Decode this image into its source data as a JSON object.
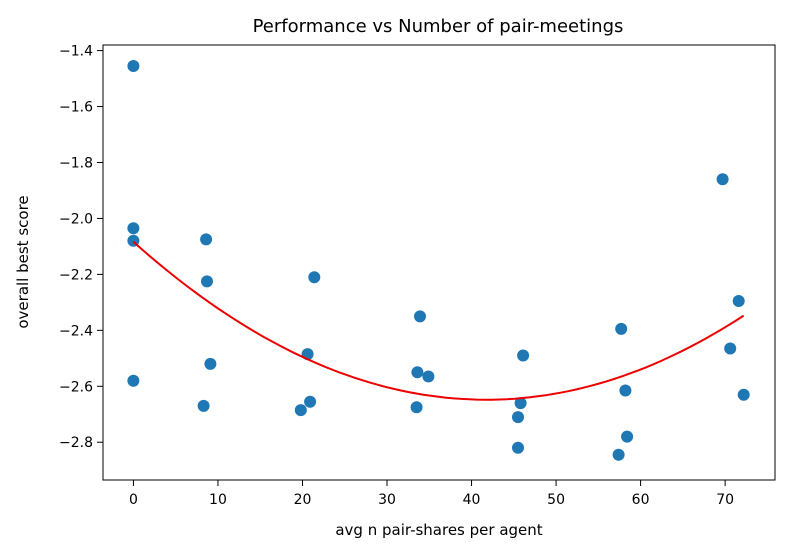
{
  "chart_data": {
    "type": "scatter",
    "title": "Performance vs Number of pair-meetings",
    "xlabel": "avg n pair-shares per agent",
    "ylabel": "overall best score",
    "xlim": [
      -3.6,
      75.9
    ],
    "ylim": [
      -2.935,
      -1.38
    ],
    "xticks": [
      0,
      10,
      20,
      30,
      40,
      50,
      60,
      70
    ],
    "xtick_labels": [
      "0",
      "10",
      "20",
      "30",
      "40",
      "50",
      "60",
      "70"
    ],
    "yticks": [
      -2.8,
      -2.6,
      -2.4,
      -2.2,
      -2.0,
      -1.8,
      -1.6,
      -1.4
    ],
    "ytick_labels": [
      "−2.8",
      "−2.6",
      "−2.4",
      "−2.2",
      "−2.0",
      "−1.8",
      "−1.6",
      "−1.4"
    ],
    "grid": false,
    "marker_color": "#1f77b4",
    "fit_color": "#ee0000",
    "points": [
      {
        "x": 0.0,
        "y": -1.455
      },
      {
        "x": 0.0,
        "y": -2.035
      },
      {
        "x": 0.0,
        "y": -2.08
      },
      {
        "x": 0.0,
        "y": -2.58
      },
      {
        "x": 8.3,
        "y": -2.67
      },
      {
        "x": 8.6,
        "y": -2.075
      },
      {
        "x": 8.7,
        "y": -2.225
      },
      {
        "x": 9.1,
        "y": -2.52
      },
      {
        "x": 19.8,
        "y": -2.685
      },
      {
        "x": 20.6,
        "y": -2.485
      },
      {
        "x": 20.9,
        "y": -2.655
      },
      {
        "x": 21.4,
        "y": -2.21
      },
      {
        "x": 33.5,
        "y": -2.675
      },
      {
        "x": 33.6,
        "y": -2.55
      },
      {
        "x": 33.9,
        "y": -2.35
      },
      {
        "x": 34.9,
        "y": -2.565
      },
      {
        "x": 45.5,
        "y": -2.71
      },
      {
        "x": 45.5,
        "y": -2.82
      },
      {
        "x": 45.8,
        "y": -2.66
      },
      {
        "x": 46.1,
        "y": -2.49
      },
      {
        "x": 57.4,
        "y": -2.845
      },
      {
        "x": 57.7,
        "y": -2.395
      },
      {
        "x": 58.2,
        "y": -2.615
      },
      {
        "x": 58.4,
        "y": -2.78
      },
      {
        "x": 69.7,
        "y": -1.86
      },
      {
        "x": 70.6,
        "y": -2.465
      },
      {
        "x": 71.6,
        "y": -2.295
      },
      {
        "x": 72.2,
        "y": -2.63
      }
    ],
    "fit": {
      "type": "quadratic",
      "x_range": [
        0,
        72.2
      ],
      "coefficients": {
        "a": 0.0003241,
        "b": -0.027052,
        "c": -2.0835
      }
    }
  }
}
